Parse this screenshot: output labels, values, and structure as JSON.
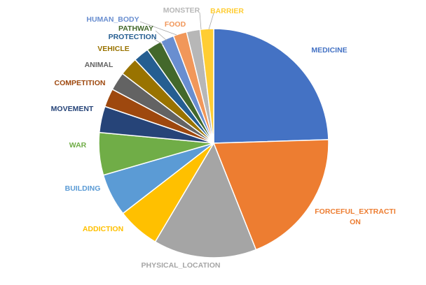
{
  "chart_data": {
    "type": "pie",
    "title": "",
    "legend": "none",
    "start_angle_deg": 0,
    "direction": "clockwise",
    "slices": [
      {
        "label": "MEDICINE",
        "value": 24.5,
        "color": "#4472C4"
      },
      {
        "label": "FORCEFUL_EXTRACTION",
        "label_lines": [
          "FORCEFUL_EXTRACTI",
          "ON"
        ],
        "value": 19.5,
        "color": "#ED7D31"
      },
      {
        "label": "PHYSICAL_LOCATION",
        "value": 14.5,
        "color": "#A5A5A5"
      },
      {
        "label": "ADDICTION",
        "value": 6.0,
        "color": "#FFC000"
      },
      {
        "label": "BUILDING",
        "value": 6.0,
        "color": "#5B9BD5"
      },
      {
        "label": "WAR",
        "value": 6.0,
        "color": "#70AD47"
      },
      {
        "label": "MOVEMENT",
        "value": 3.7,
        "color": "#264478"
      },
      {
        "label": "COMPETITION",
        "value": 2.6,
        "color": "#9E480E"
      },
      {
        "label": "ANIMAL",
        "value": 2.6,
        "color": "#636363"
      },
      {
        "label": "VEHICLE",
        "value": 2.6,
        "color": "#997300"
      },
      {
        "label": "PROTECTION",
        "value": 2.2,
        "color": "#255E91"
      },
      {
        "label": "PATHWAY",
        "value": 2.2,
        "color": "#43682B"
      },
      {
        "label": "HUMAN_BODY",
        "value": 1.9,
        "color": "#698ED0"
      },
      {
        "label": "FOOD",
        "value": 1.9,
        "color": "#F1975A"
      },
      {
        "label": "MONSTER",
        "value": 1.9,
        "color": "#B7B7B7"
      },
      {
        "label": "BARRIER",
        "value": 1.9,
        "color": "#FFCD33"
      }
    ]
  }
}
